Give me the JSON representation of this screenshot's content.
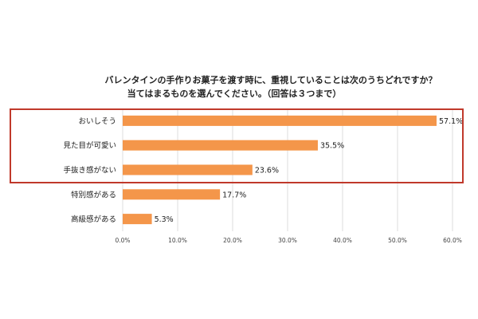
{
  "chart_data": {
    "type": "bar",
    "orientation": "horizontal",
    "title_lines": [
      "バレンタインの手作りお菓子を渡す時に、重視していることは次のうちどれですか？",
      "当てはまるものを選んでください。（回答は３つまで）"
    ],
    "categories": [
      "おいしそう",
      "見た目が可愛い",
      "手抜き感がない",
      "特別感がある",
      "高級感がある"
    ],
    "values": [
      57.1,
      35.5,
      23.6,
      17.7,
      5.3
    ],
    "value_labels": [
      "57.1%",
      "35.5%",
      "23.6%",
      "17.7%",
      "5.3%"
    ],
    "xlim": [
      0,
      60
    ],
    "x_ticks": [
      0,
      10,
      20,
      30,
      40,
      50,
      60
    ],
    "x_tick_labels": [
      "0.0%",
      "10.0%",
      "20.0%",
      "30.0%",
      "40.0%",
      "50.0%",
      "60.0%"
    ],
    "grid": true,
    "highlighted_categories": 3,
    "colors": {
      "bar": "#f4964a",
      "grid": "#dddddd",
      "highlight_box": "#c0392b",
      "text": "#222222"
    }
  }
}
